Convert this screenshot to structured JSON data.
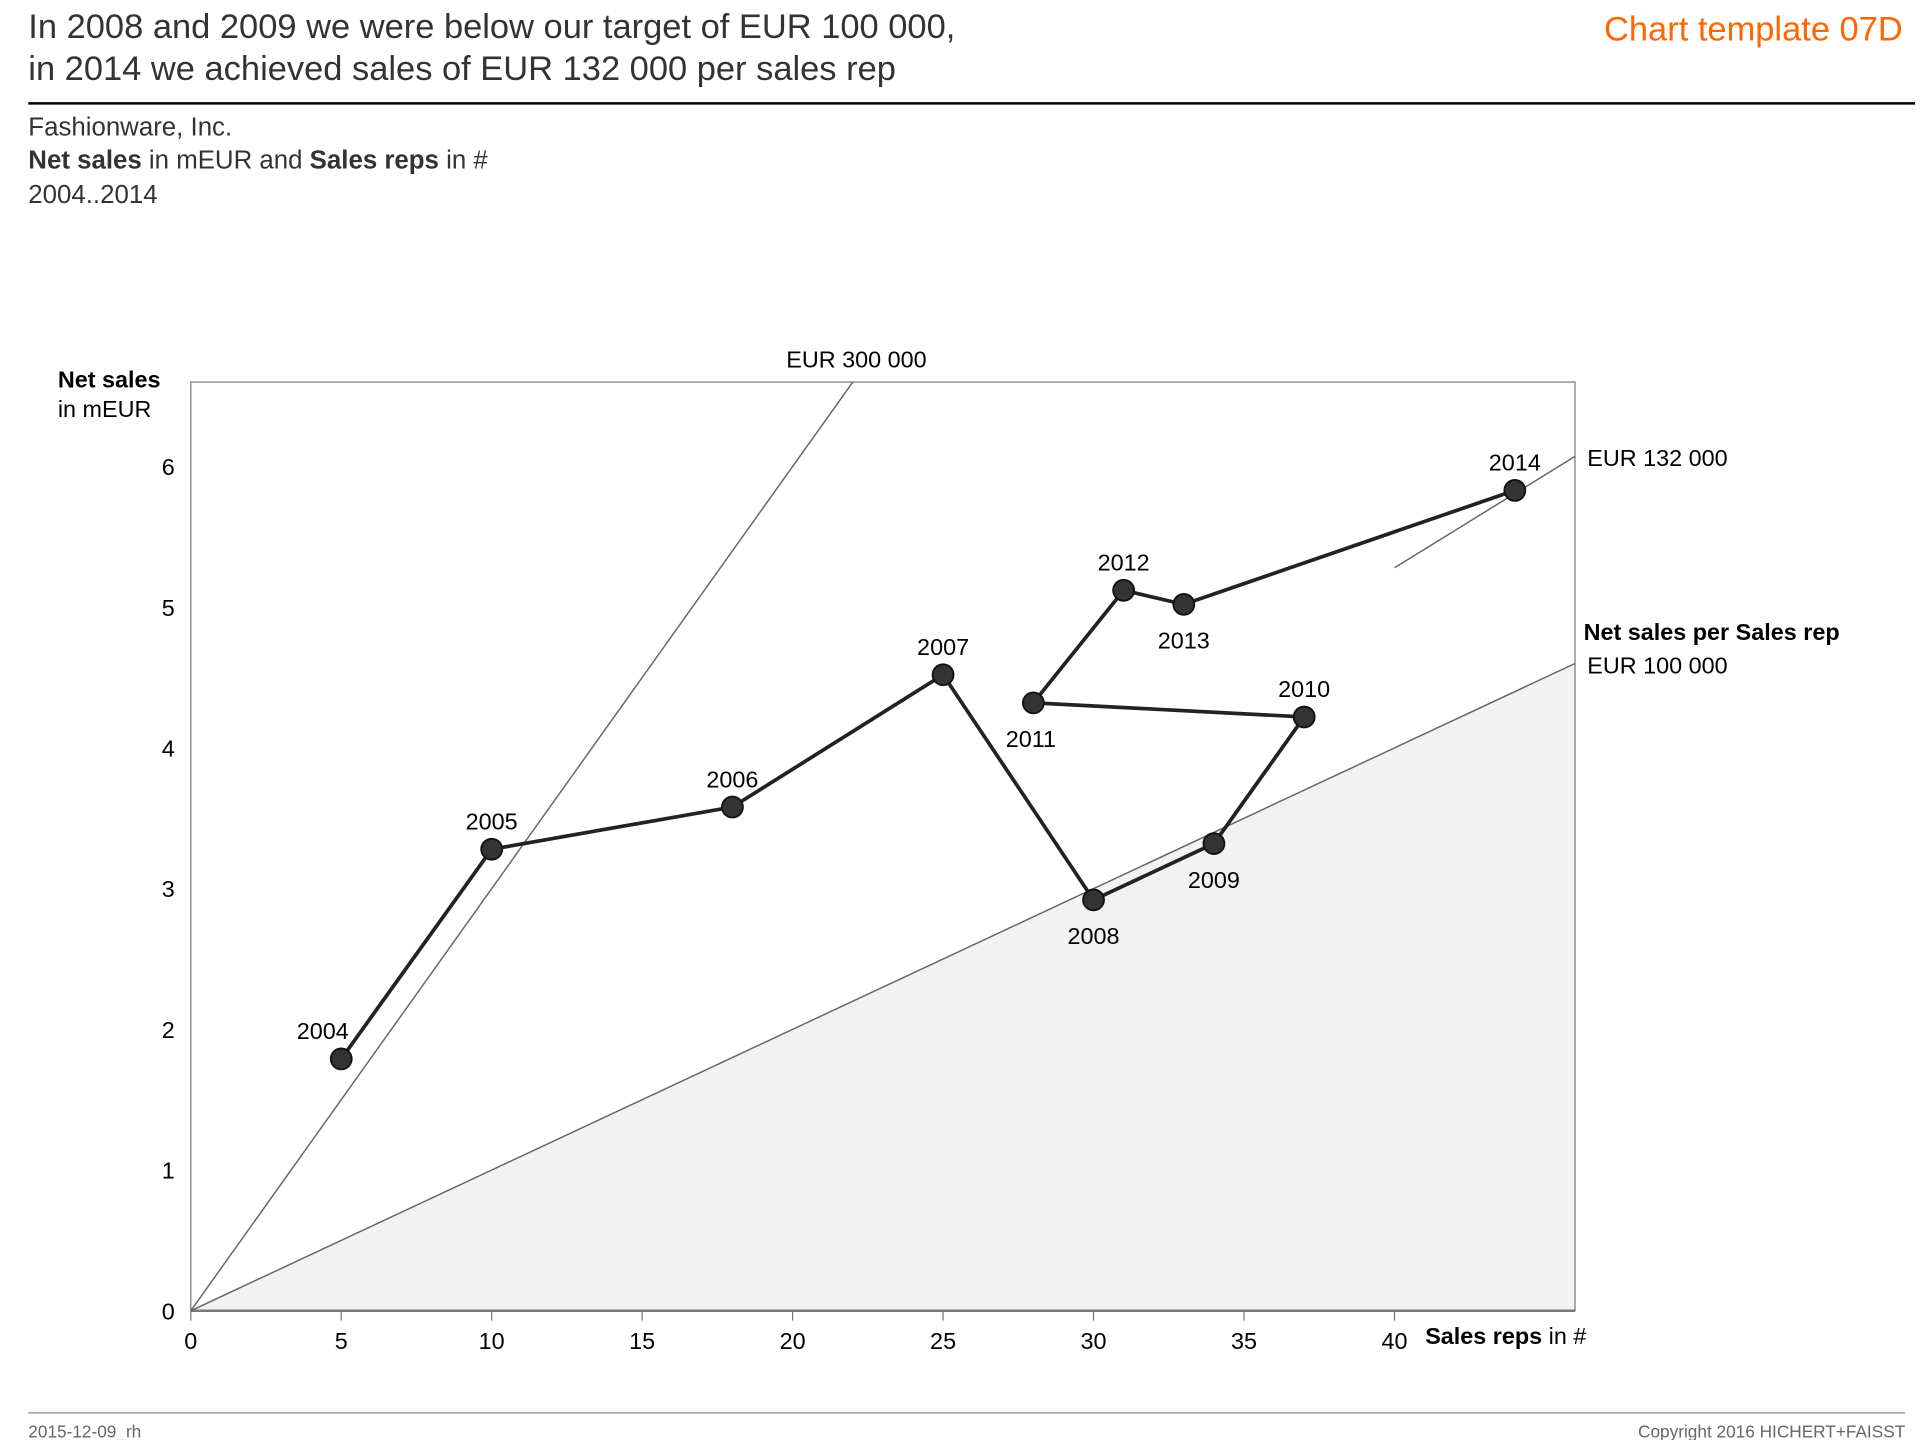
{
  "header": {
    "title_line1": "In 2008 and 2009 we were below our target of EUR 100 000,",
    "title_line2": "in 2014 we achieved sales of EUR 132 000 per sales rep",
    "template_label": "Chart template 07D",
    "template_color": "#ff6600"
  },
  "subtitle": {
    "company": "Fashionware, Inc.",
    "measure_bold1": "Net sales",
    "measure_text1": " in mEUR and ",
    "measure_bold2": "Sales reps",
    "measure_text2": " in #",
    "period": "2004..2014"
  },
  "footer": {
    "date": "2015-12-09_rh",
    "copyright": "Copyright 2016 HICHERT+FAISST"
  },
  "chart_data": {
    "type": "scatter",
    "connected": true,
    "xlabel_bold": "Sales reps",
    "xlabel_rest": " in #",
    "ylabel_bold": "Net sales",
    "ylabel_rest": "in mEUR",
    "xlim": [
      0,
      46
    ],
    "ylim": [
      0,
      6.6
    ],
    "xticks": [
      0,
      5,
      10,
      15,
      20,
      25,
      30,
      35,
      40
    ],
    "yticks": [
      0,
      1,
      2,
      3,
      4,
      5,
      6
    ],
    "grid": false,
    "points": [
      {
        "label": "2004",
        "x": 5,
        "y": 1.79
      },
      {
        "label": "2005",
        "x": 10,
        "y": 3.28
      },
      {
        "label": "2006",
        "x": 18,
        "y": 3.58
      },
      {
        "label": "2007",
        "x": 25,
        "y": 4.52
      },
      {
        "label": "2008",
        "x": 30,
        "y": 2.92
      },
      {
        "label": "2009",
        "x": 34,
        "y": 3.32
      },
      {
        "label": "2010",
        "x": 37,
        "y": 4.22
      },
      {
        "label": "2011",
        "x": 28,
        "y": 4.32
      },
      {
        "label": "2012",
        "x": 31,
        "y": 5.12
      },
      {
        "label": "2013",
        "x": 33,
        "y": 5.02
      },
      {
        "label": "2014",
        "x": 44,
        "y": 5.83
      }
    ],
    "reference_lines": [
      {
        "label": "EUR 300 000",
        "slope": 0.3
      },
      {
        "label": "EUR 132 000",
        "slope": 0.132,
        "x_from": 40
      },
      {
        "label": "EUR 100 000",
        "title": "Net sales per Sales rep",
        "slope": 0.1,
        "shaded_below": true
      }
    ],
    "colors": {
      "line": "#222222",
      "marker": "#333333",
      "reference": "#666666",
      "shade": "#f2f2f2"
    }
  }
}
